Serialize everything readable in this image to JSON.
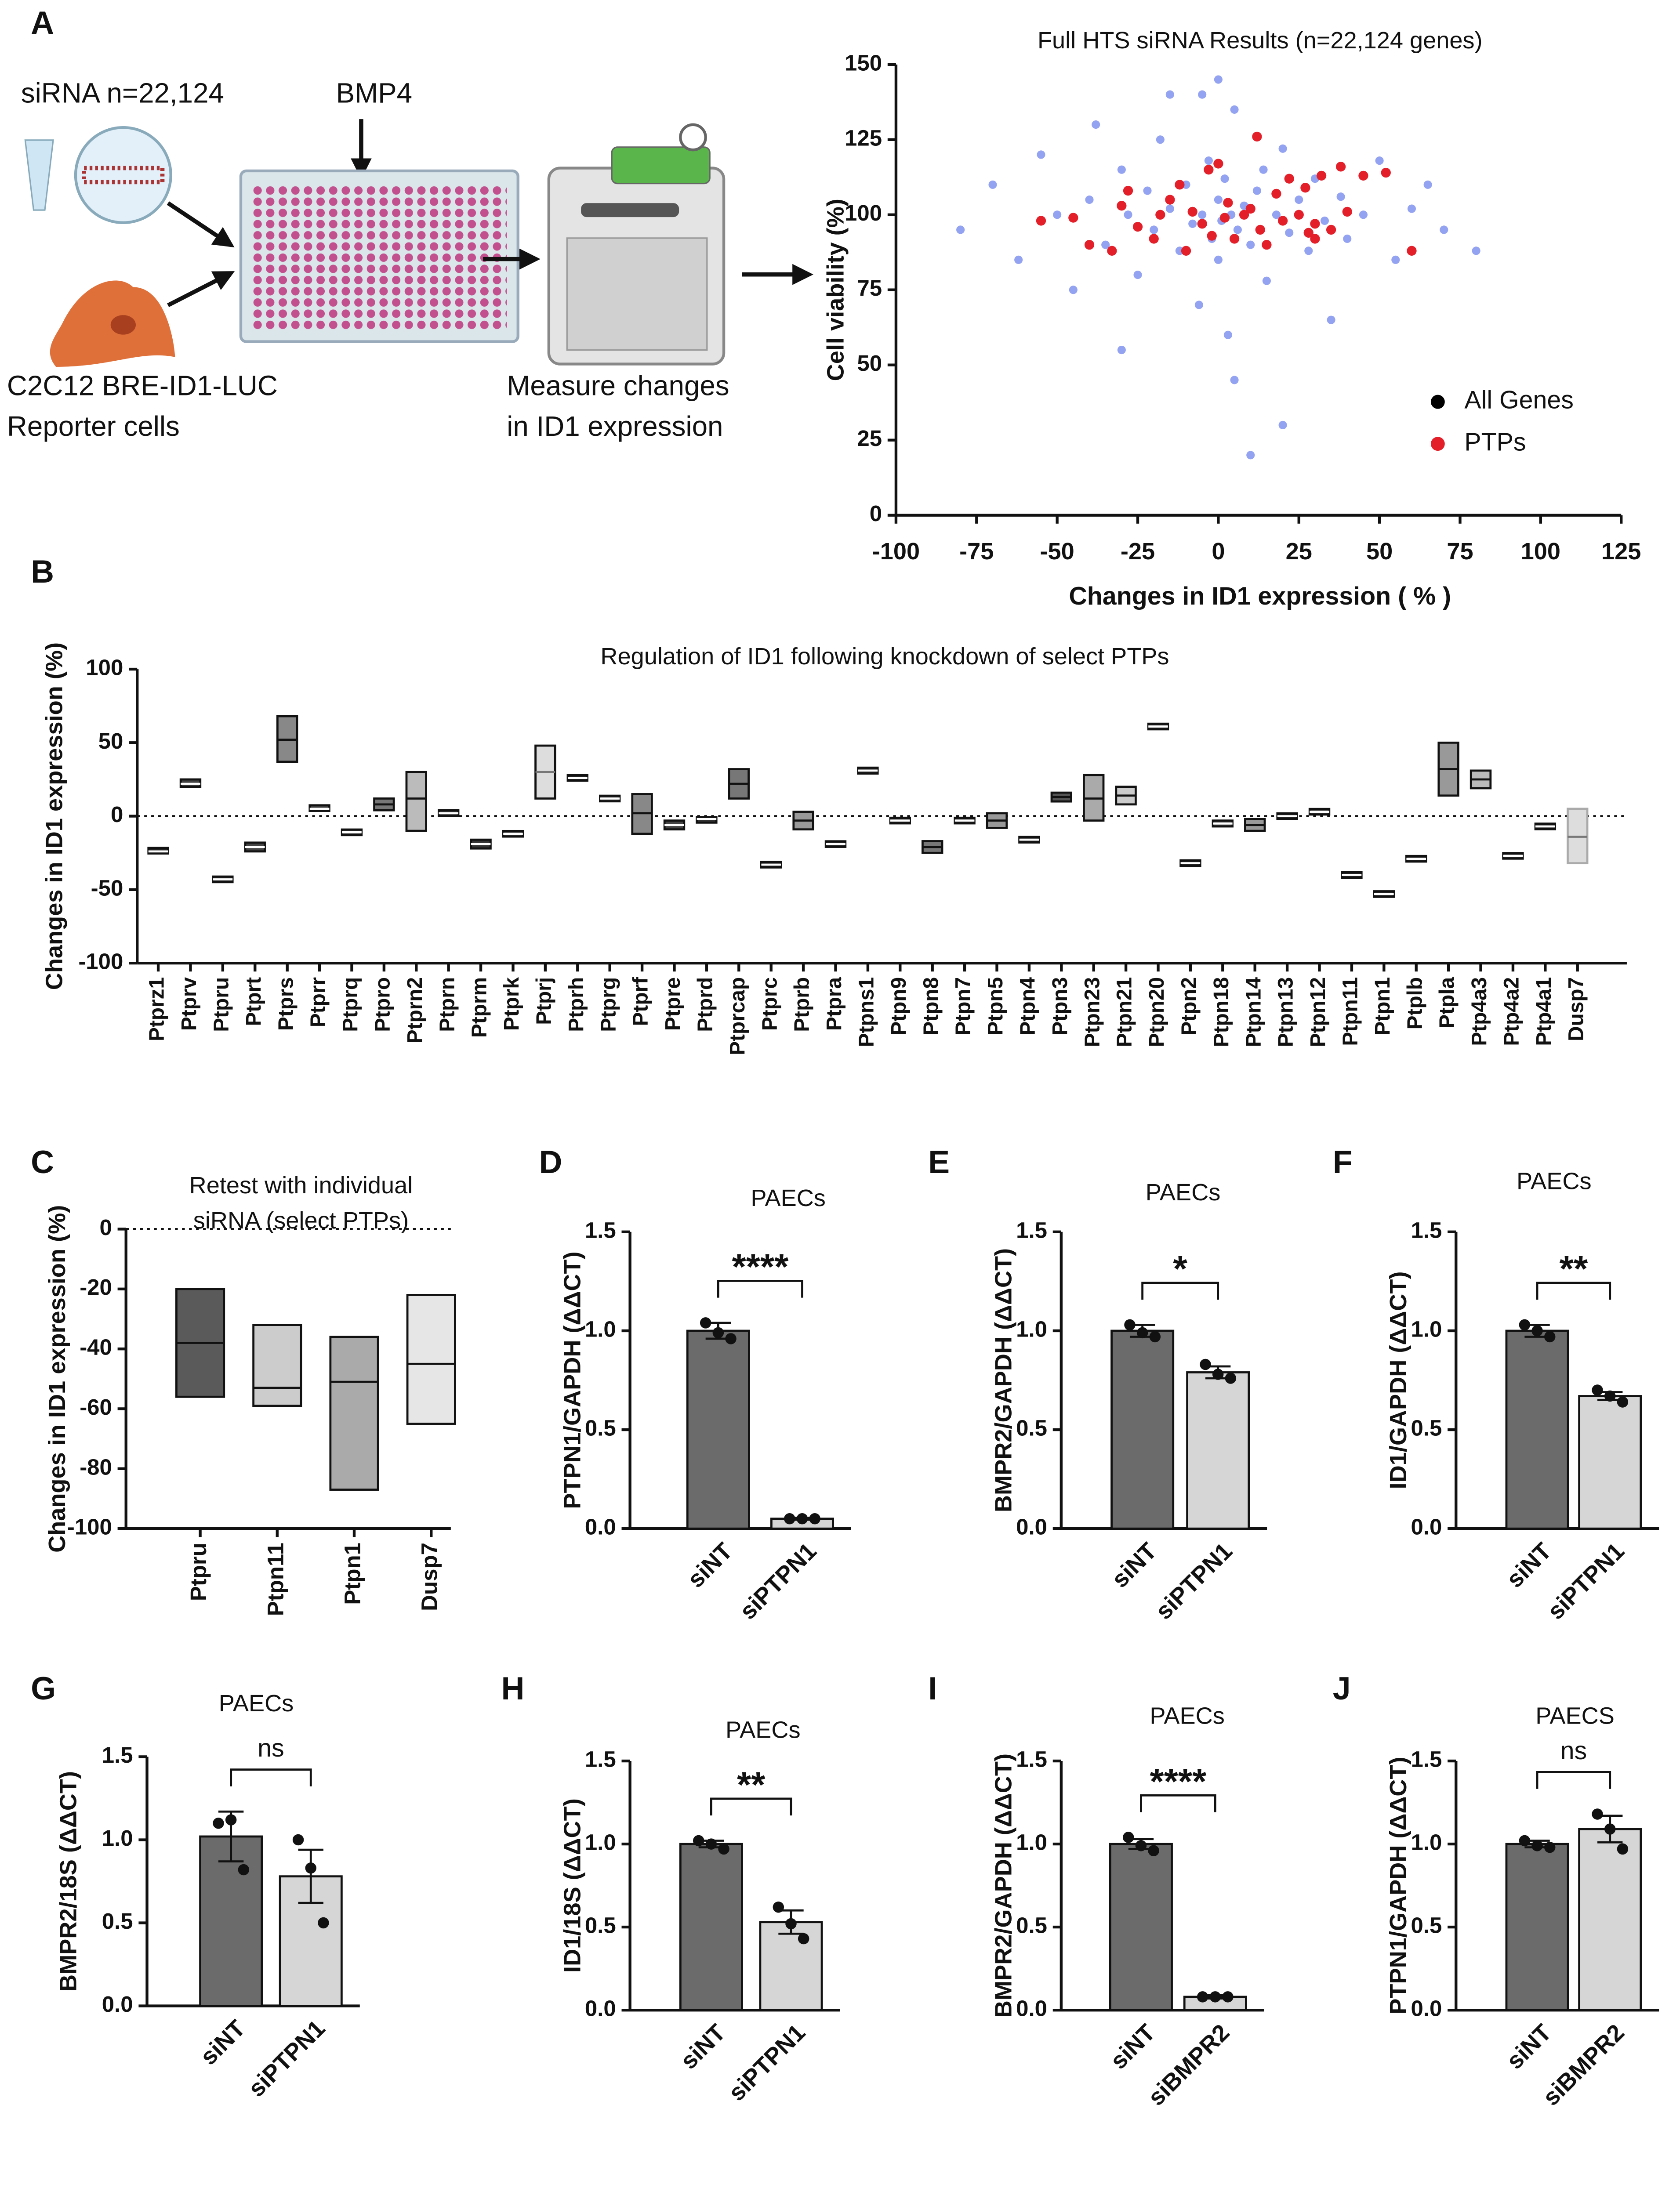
{
  "schematic": {
    "panel": "A",
    "labels": [
      "siRNA n=22,124",
      "BMP4",
      "C2C12 BRE-ID1-LUC",
      "Reporter cells",
      "Measure changes",
      "in ID1 expression"
    ]
  },
  "chart_data": [
    {
      "type": "scatter",
      "title": "Full HTS siRNA Results (n=22,124 genes)",
      "x_label": "Changes in ID1 expression ( % )",
      "y_label": "Cell viability (%)",
      "xlim": [
        -100,
        125
      ],
      "xticks": [
        -100,
        -75,
        -50,
        -25,
        0,
        25,
        50,
        75,
        100,
        125
      ],
      "ylim": [
        0,
        150
      ],
      "yticks": [
        0,
        25,
        50,
        75,
        100,
        125,
        150
      ],
      "series": [
        {
          "name": "All Genes",
          "color": "#3a56e6",
          "legend_color": "#000000",
          "x": [
            -80,
            -70,
            -62,
            -55,
            -50,
            -45,
            -40,
            -38,
            -35,
            -30,
            -28,
            -25,
            -22,
            -20,
            -18,
            -15,
            -12,
            -10,
            -8,
            -6,
            -5,
            -3,
            -2,
            0,
            0,
            1,
            2,
            3,
            4,
            5,
            6,
            8,
            10,
            12,
            14,
            15,
            18,
            20,
            22,
            25,
            28,
            30,
            33,
            35,
            38,
            40,
            45,
            50,
            55,
            60,
            65,
            70,
            80,
            -15,
            5,
            -30,
            20,
            -5,
            10,
            0
          ],
          "values": [
            95,
            110,
            85,
            120,
            100,
            75,
            105,
            130,
            90,
            115,
            100,
            80,
            108,
            95,
            125,
            102,
            88,
            110,
            97,
            70,
            100,
            118,
            92,
            105,
            85,
            98,
            112,
            60,
            100,
            135,
            95,
            103,
            90,
            108,
            115,
            78,
            100,
            122,
            94,
            105,
            88,
            112,
            98,
            65,
            106,
            92,
            100,
            118,
            85,
            102,
            110,
            95,
            88,
            140,
            45,
            55,
            30,
            140,
            20,
            145
          ]
        },
        {
          "name": "PTPs",
          "color": "#e3202a",
          "legend_color": "#e3202a",
          "x": [
            -55,
            -45,
            -40,
            -33,
            -30,
            -28,
            -25,
            -20,
            -18,
            -15,
            -12,
            -10,
            -8,
            -5,
            -3,
            -2,
            0,
            2,
            3,
            5,
            8,
            10,
            12,
            13,
            15,
            18,
            20,
            22,
            25,
            27,
            28,
            30,
            30,
            32,
            35,
            38,
            40,
            45,
            52,
            60
          ],
          "values": [
            98,
            99,
            90,
            88,
            103,
            108,
            96,
            92,
            100,
            105,
            110,
            88,
            101,
            97,
            115,
            93,
            117,
            99,
            104,
            92,
            100,
            102,
            126,
            95,
            90,
            107,
            98,
            112,
            100,
            109,
            94,
            97,
            92,
            113,
            95,
            116,
            101,
            113,
            114,
            88
          ]
        }
      ],
      "legend": "lower right"
    },
    {
      "type": "floating_bar",
      "panel": "B",
      "title": "Regulation of ID1 following knockdown of select PTPs",
      "y_label": "Changes in ID1 expression (%)",
      "categories": [
        "Ptprz1",
        "Ptprv",
        "Ptpru",
        "Ptprt",
        "Ptprs",
        "Ptprr",
        "Ptprq",
        "Ptpro",
        "Ptprn2",
        "Ptprn",
        "Ptprm",
        "Ptprk",
        "Ptprj",
        "Ptprh",
        "Ptprg",
        "Ptprf",
        "Ptpre",
        "Ptprd",
        "Ptprcap",
        "Ptprc",
        "Ptprb",
        "Ptpra",
        "Ptpns1",
        "Ptpn9",
        "Ptpn8",
        "Ptpn7",
        "Ptpn5",
        "Ptpn4",
        "Ptpn3",
        "Ptpn23",
        "Ptpn21",
        "Ptpn20",
        "Ptpn2",
        "Ptpn18",
        "Ptpn14",
        "Ptpn13",
        "Ptpn12",
        "Ptpn11",
        "Ptpn1",
        "Ptplb",
        "Ptpla",
        "Ptp4a3",
        "Ptp4a2",
        "Ptp4a1",
        "Dusp7"
      ],
      "low": [
        -25,
        20,
        -44,
        -24,
        37,
        4,
        -12,
        4,
        -10,
        0,
        -22,
        -13,
        12,
        25,
        11,
        -12,
        -9,
        -4,
        12,
        -34,
        -9,
        -20,
        29,
        -4,
        -25,
        -4,
        -8,
        -17,
        10,
        -3,
        8,
        60,
        -33,
        -7,
        -10,
        -1,
        2,
        -41,
        -54,
        -30,
        14,
        19,
        -28,
        -8,
        -32
      ],
      "mid": [
        -24,
        22,
        -43,
        -21,
        52,
        5,
        -11,
        8,
        12,
        2,
        -19,
        -12,
        30,
        26,
        12,
        2,
        -6,
        -2,
        22,
        -33,
        -3,
        -19,
        31,
        -3,
        -21,
        -3,
        -3,
        -16,
        13,
        12,
        14,
        61,
        -32,
        -5,
        -6,
        0,
        3,
        -40,
        -53,
        -29,
        32,
        25,
        -27,
        -7,
        -14
      ],
      "high": [
        -22,
        25,
        -42,
        -18,
        68,
        7,
        -10,
        12,
        30,
        4,
        -16,
        -11,
        48,
        27,
        13,
        15,
        -3,
        -1,
        32,
        -32,
        3,
        -18,
        33,
        -2,
        -17,
        -2,
        2,
        -15,
        16,
        28,
        20,
        62,
        -31,
        -3,
        -2,
        1,
        4,
        -39,
        -52,
        -28,
        50,
        31,
        -26,
        -6,
        5
      ],
      "colors": [
        "#222222",
        "#444444",
        "#222222",
        "#444444",
        "#888888",
        "#444444",
        "#333333",
        "#777777",
        "#bbbbbb",
        "#333333",
        "#333333",
        "#333333",
        "#dddddd",
        "#222222",
        "#333333",
        "#888888",
        "#444444",
        "#333333",
        "#777777",
        "#222222",
        "#999999",
        "#222222",
        "#222222",
        "#222222",
        "#777777",
        "#222222",
        "#999999",
        "#222222",
        "#555555",
        "#aaaaaa",
        "#cccccc",
        "#222222",
        "#222222",
        "#444444",
        "#999999",
        "#222222",
        "#333333",
        "#222222",
        "#222222",
        "#222222",
        "#999999",
        "#bbbbbb",
        "#222222",
        "#222222",
        "#dddddd"
      ],
      "ylim": [
        -100,
        100
      ],
      "yticks": [
        -100,
        -50,
        0,
        50,
        100
      ],
      "reference_line": 0
    },
    {
      "type": "floating_bar",
      "panel": "C",
      "title_lines": [
        "Retest with individual",
        "siRNA (select PTPs)"
      ],
      "y_label": "Changes in ID1 expression (%)",
      "categories": [
        "Ptpru",
        "Ptpn11",
        "Ptpn1",
        "Dusp7"
      ],
      "low": [
        -56,
        -59,
        -87,
        -65
      ],
      "mid": [
        -38,
        -53,
        -51,
        -45
      ],
      "high": [
        -20,
        -32,
        -36,
        -22
      ],
      "colors": [
        "#5a5a5a",
        "#cccccc",
        "#aaaaaa",
        "#e6e6e6"
      ],
      "ylim": [
        -100,
        0
      ],
      "yticks": [
        -100,
        -80,
        -60,
        -40,
        -20,
        0
      ],
      "reference_line": 0
    },
    {
      "type": "bar",
      "panel": "D",
      "title": "PAECs",
      "y_label": "PTPN1/GAPDH (ΔΔCT)",
      "categories": [
        "siNT",
        "siPTPN1"
      ],
      "values": [
        1.0,
        0.05
      ],
      "errors": [
        0.04,
        0.005
      ],
      "points": [
        [
          1.04,
          0.99,
          0.96
        ],
        [
          0.05,
          0.05,
          0.05
        ]
      ],
      "colors": [
        "#6b6b6b",
        "#d6d6d6"
      ],
      "significance": "****",
      "ylim": [
        0,
        1.5
      ],
      "yticks": [
        {
          "value": 0,
          "label": "0.0"
        },
        0.5,
        {
          "value": 1,
          "label": "1.0"
        },
        1.5
      ]
    },
    {
      "type": "bar",
      "panel": "E",
      "title": "PAECs",
      "y_label": "BMPR2/GAPDH (ΔΔCT)",
      "categories": [
        "siNT",
        "siPTPN1"
      ],
      "values": [
        1.0,
        0.79
      ],
      "errors": [
        0.03,
        0.03
      ],
      "points": [
        [
          1.03,
          0.99,
          0.97
        ],
        [
          0.83,
          0.78,
          0.76
        ]
      ],
      "colors": [
        "#6b6b6b",
        "#d6d6d6"
      ],
      "significance": "*",
      "ylim": [
        0,
        1.5
      ],
      "yticks": [
        {
          "value": 0,
          "label": "0.0"
        },
        0.5,
        {
          "value": 1,
          "label": "1.0"
        },
        1.5
      ]
    },
    {
      "type": "bar",
      "panel": "F",
      "title": "PAECs",
      "y_label": "ID1/GAPDH (ΔΔCT)",
      "categories": [
        "siNT",
        "siPTPN1"
      ],
      "values": [
        1.0,
        0.67
      ],
      "errors": [
        0.03,
        0.02
      ],
      "points": [
        [
          1.03,
          1.0,
          0.97
        ],
        [
          0.7,
          0.67,
          0.64
        ]
      ],
      "colors": [
        "#6b6b6b",
        "#d6d6d6"
      ],
      "significance": "**",
      "ylim": [
        0,
        1.5
      ],
      "yticks": [
        {
          "value": 0,
          "label": "0.0"
        },
        0.5,
        {
          "value": 1,
          "label": "1.0"
        },
        1.5
      ]
    },
    {
      "type": "bar",
      "panel": "G",
      "title": "PAECs",
      "y_label": "BMPR2/18S (ΔΔCT)",
      "categories": [
        "siNT",
        "siPTPN1"
      ],
      "values": [
        1.02,
        0.78
      ],
      "errors": [
        0.15,
        0.16
      ],
      "points": [
        [
          1.1,
          1.12,
          0.82
        ],
        [
          1.0,
          0.83,
          0.5
        ]
      ],
      "colors": [
        "#6b6b6b",
        "#d6d6d6"
      ],
      "significance": "ns",
      "ylim": [
        0,
        1.5
      ],
      "yticks": [
        {
          "value": 0,
          "label": "0.0"
        },
        0.5,
        {
          "value": 1,
          "label": "1.0"
        },
        1.5
      ]
    },
    {
      "type": "bar",
      "panel": "H",
      "title": "PAECs",
      "y_label": "ID1/18S (ΔΔCT)",
      "categories": [
        "siNT",
        "siPTPN1"
      ],
      "values": [
        1.0,
        0.53
      ],
      "errors": [
        0.02,
        0.07
      ],
      "points": [
        [
          1.02,
          1.0,
          0.97
        ],
        [
          0.62,
          0.52,
          0.43
        ]
      ],
      "colors": [
        "#6b6b6b",
        "#d6d6d6"
      ],
      "significance": "**",
      "ylim": [
        0,
        1.5
      ],
      "yticks": [
        {
          "value": 0,
          "label": "0.0"
        },
        0.5,
        {
          "value": 1,
          "label": "1.0"
        },
        1.5
      ]
    },
    {
      "type": "bar",
      "panel": "I",
      "title": "PAECs",
      "y_label": "BMPR2/GAPDH (ΔΔCT)",
      "categories": [
        "siNT",
        "siBMPR2"
      ],
      "values": [
        1.0,
        0.08
      ],
      "errors": [
        0.03,
        0.01
      ],
      "points": [
        [
          1.04,
          0.99,
          0.96
        ],
        [
          0.08,
          0.08,
          0.08
        ]
      ],
      "colors": [
        "#6b6b6b",
        "#d6d6d6"
      ],
      "significance": "****",
      "ylim": [
        0,
        1.5
      ],
      "yticks": [
        {
          "value": 0,
          "label": "0.0"
        },
        0.5,
        {
          "value": 1,
          "label": "1.0"
        },
        1.5
      ]
    },
    {
      "type": "bar",
      "panel": "J",
      "title": "PAECS",
      "y_label": "PTPN1/GAPDH (ΔΔCT)",
      "categories": [
        "siNT",
        "siBMPR2"
      ],
      "values": [
        1.0,
        1.09
      ],
      "errors": [
        0.02,
        0.08
      ],
      "points": [
        [
          1.02,
          0.99,
          0.98
        ],
        [
          1.18,
          1.09,
          0.97
        ]
      ],
      "colors": [
        "#6b6b6b",
        "#d6d6d6"
      ],
      "significance": "ns",
      "ylim": [
        0,
        1.5
      ],
      "yticks": [
        {
          "value": 0,
          "label": "0.0"
        },
        0.5,
        {
          "value": 1,
          "label": "1.0"
        },
        1.5
      ]
    }
  ]
}
